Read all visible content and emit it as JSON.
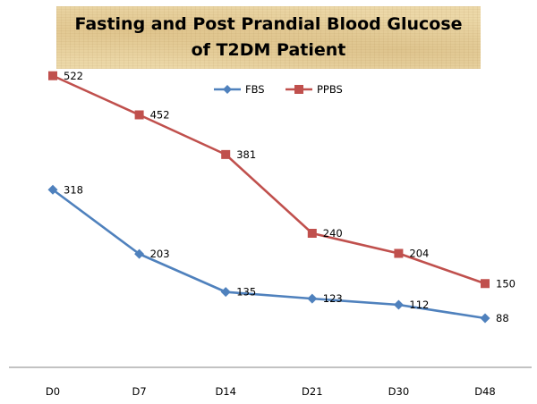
{
  "chart_data": {
    "type": "line",
    "title": "Fasting and Post Prandial Blood Glucose of T2DM Patient",
    "categories": [
      "D0",
      "D7",
      "D14",
      "D21",
      "D30",
      "D48"
    ],
    "series": [
      {
        "name": "FBS",
        "values": [
          318,
          203,
          135,
          123,
          112,
          88
        ],
        "color": "#4f81bd",
        "marker": "diamond"
      },
      {
        "name": "PPBS",
        "values": [
          522,
          452,
          381,
          240,
          204,
          150
        ],
        "color": "#c0504d",
        "marker": "square"
      }
    ],
    "xlabel": "",
    "ylabel": "",
    "ylim": [
      0,
      600
    ],
    "grid": false,
    "legend": "top-center",
    "data_labels": true
  }
}
